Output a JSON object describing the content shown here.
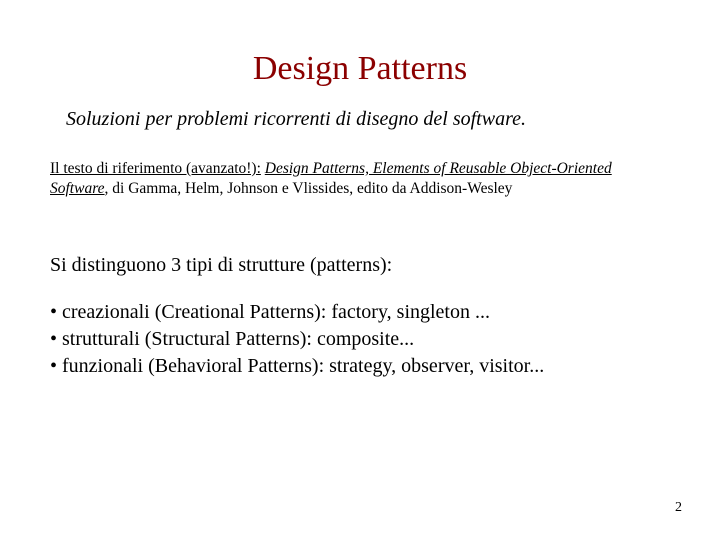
{
  "colors": {
    "title": "#8b0000",
    "text": "#000000",
    "background": "#ffffff"
  },
  "fonts": {
    "family": "Times New Roman",
    "title_size_pt": 34,
    "subtitle_size_pt": 20,
    "reference_size_pt": 15.5,
    "body_size_pt": 20,
    "pagenum_size_pt": 14
  },
  "title": "Design Patterns",
  "subtitle": "Soluzioni per problemi ricorrenti di disegno del software.",
  "reference": {
    "label": "Il testo di riferimento (avanzato!):",
    "book_title": "Design Patterns, Elements of Reusable Object-Oriented Software",
    "authors_publisher": ", di Gamma, Helm, Johnson e Vlissides, edito da Addison-Wesley"
  },
  "body_intro": "Si distinguono 3 tipi di strutture (patterns):",
  "bullets": [
    "• creazionali (Creational Patterns): factory, singleton ...",
    "• strutturali (Structural Patterns): composite...",
    "• funzionali (Behavioral Patterns): strategy, observer, visitor..."
  ],
  "page_number": "2"
}
